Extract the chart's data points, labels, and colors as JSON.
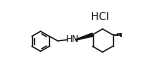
{
  "background_color": "#ffffff",
  "hcl_label": "HCl",
  "hcl_fontsize": 7.5,
  "nh_label": "HN",
  "nh_fontsize": 6.5,
  "line_color": "#111111",
  "line_width": 0.9
}
